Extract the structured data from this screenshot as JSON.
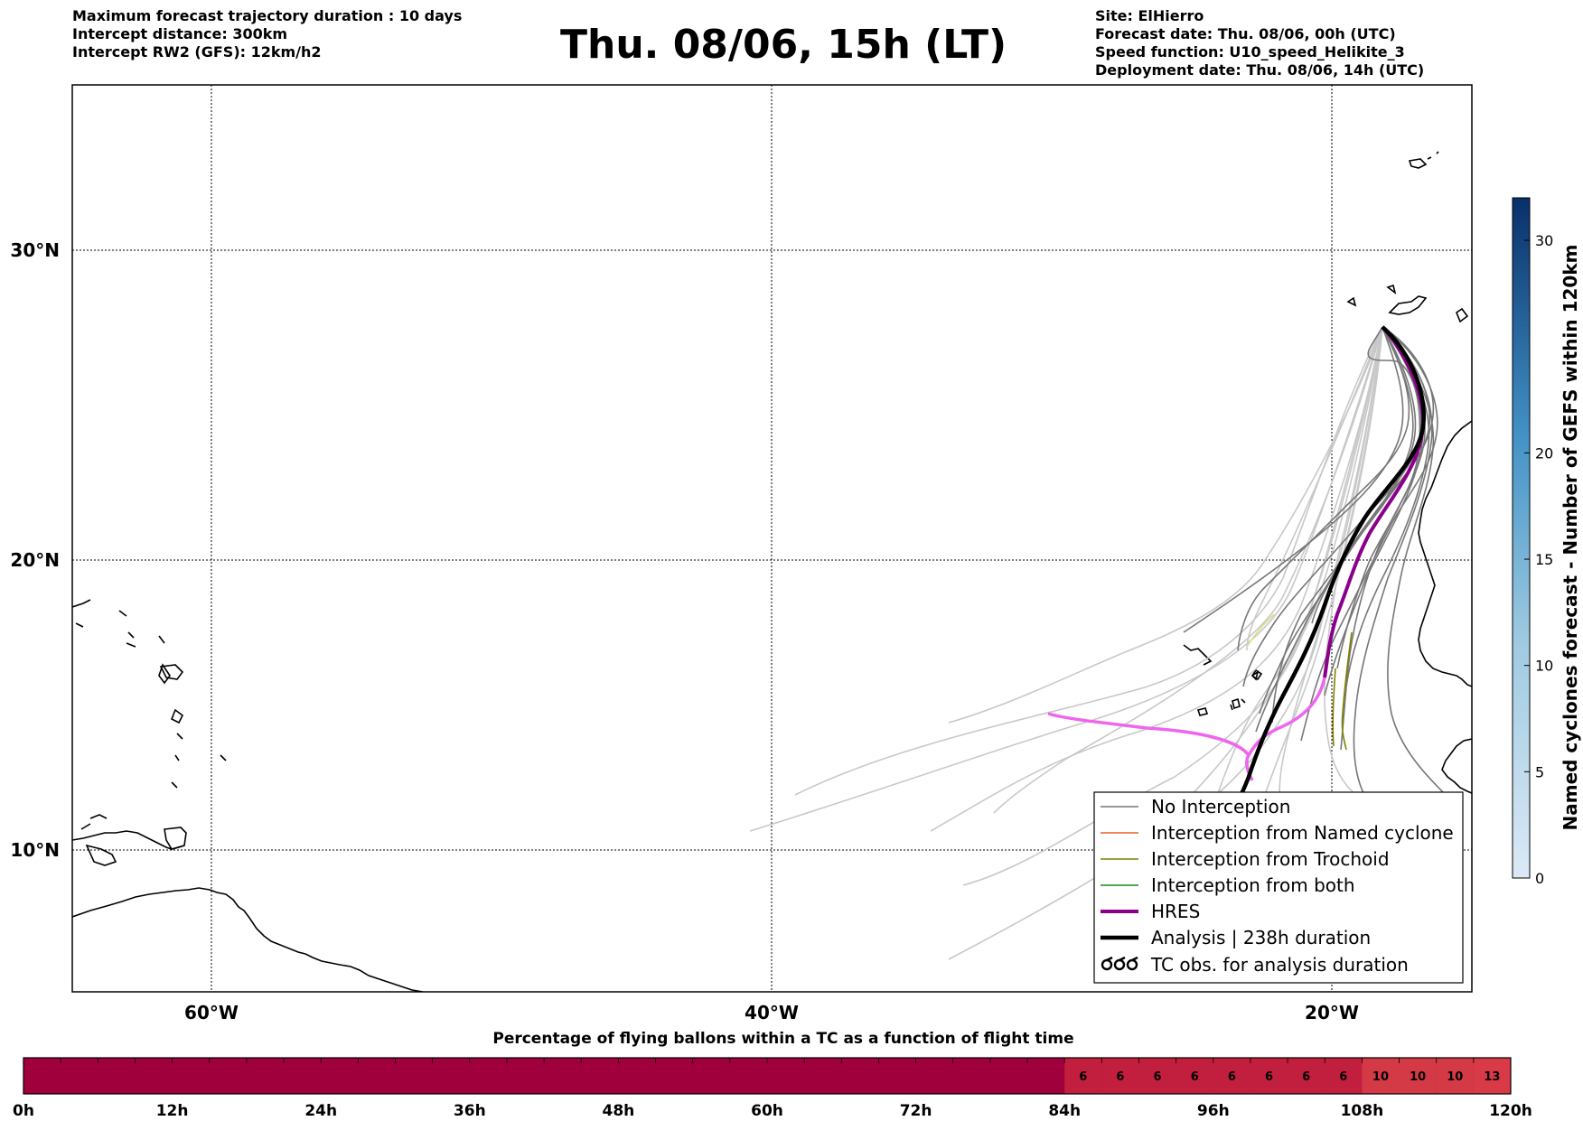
{
  "header_left": [
    "Maximum forecast trajectory duration : 10 days",
    "Intercept distance: 300km",
    "Intercept RW2 (GFS):  12km/h2"
  ],
  "title": "Thu. 08/06, 15h (LT)",
  "header_right": [
    "Site: ElHierro",
    "Forecast date: Thu. 08/06, 00h (UTC)",
    "Speed function: U10_speed_Helikite_3",
    "Deployment date: Thu. 08/06, 14h (UTC)"
  ],
  "map": {
    "lat_labels": [
      "30°N",
      "20°N",
      "10°N"
    ],
    "lon_labels": [
      "60°W",
      "40°W",
      "20°W"
    ],
    "gridlines": true
  },
  "legend": {
    "placement": "lower-right",
    "items": [
      {
        "label": "No Interception",
        "color": "#777777"
      },
      {
        "label": "Interception from Named cyclone",
        "color": "#e8602c"
      },
      {
        "label": "Interception from Trochoid",
        "color": "#808000"
      },
      {
        "label": "Interception from both",
        "color": "#1a8c1a"
      },
      {
        "label": "HRES",
        "color": "#8b008b"
      },
      {
        "label": "Analysis | 238h duration",
        "color": "#000000"
      },
      {
        "label": "TC obs. for analysis duration",
        "color": "#000000",
        "icon": "tc-symbol-icon"
      }
    ]
  },
  "colorbar": {
    "label": "Named cyclones forecast - Number of GEFS within 120km",
    "min": 0,
    "max": 32,
    "ticks": [
      "0",
      "5",
      "10",
      "15",
      "20",
      "30"
    ],
    "color_low": "#dbe9f6",
    "color_high": "#08306b"
  },
  "timebar": {
    "title": "Percentage of flying ballons within a TC as a function of flight time",
    "labels": [
      "0h",
      "12h",
      "24h",
      "36h",
      "48h",
      "60h",
      "72h",
      "84h",
      "96h",
      "108h",
      "120h"
    ],
    "percentages": [
      "6",
      "6",
      "6",
      "6",
      "6",
      "6",
      "6",
      "6",
      "10",
      "10",
      "10",
      "13"
    ]
  }
}
